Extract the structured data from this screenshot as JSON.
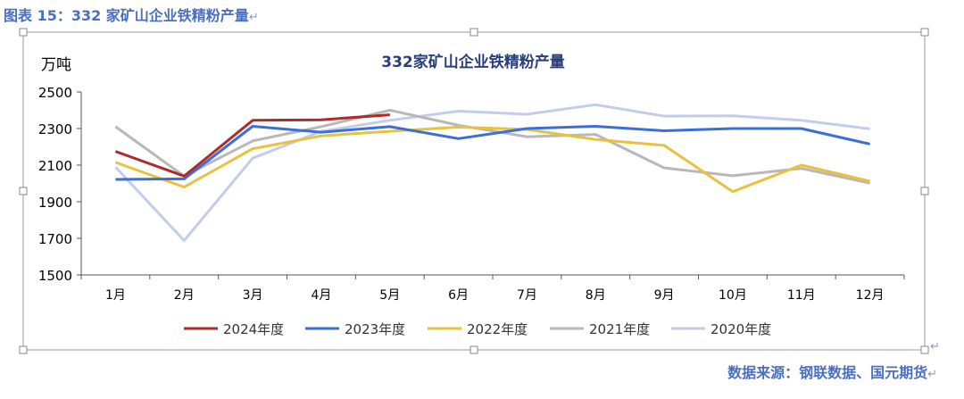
{
  "caption": "图表 15：332 家矿山企业铁精粉产量",
  "source": "数据来源：钢联数据、国元期货",
  "return_mark": "↵",
  "chart_data": {
    "type": "line",
    "title": "332家矿山企业铁精粉产量",
    "ylabel": "万吨",
    "xlabel": "",
    "categories": [
      "1月",
      "2月",
      "3月",
      "4月",
      "5月",
      "6月",
      "7月",
      "8月",
      "9月",
      "10月",
      "11月",
      "12月"
    ],
    "ylim": [
      1500,
      2500
    ],
    "yticks": [
      1500,
      1700,
      1900,
      2100,
      2300,
      2500
    ],
    "grid": false,
    "legend_position": "bottom",
    "series": [
      {
        "name": "2024年度",
        "color": "#b02a2a",
        "values": [
          2175,
          2040,
          2345,
          2348,
          2375,
          null,
          null,
          null,
          null,
          null,
          null,
          null
        ]
      },
      {
        "name": "2023年度",
        "color": "#3a6fd8",
        "values": [
          2022,
          2025,
          2312,
          2280,
          2310,
          2245,
          2300,
          2312,
          2288,
          2300,
          2300,
          2215
        ]
      },
      {
        "name": "2022年度",
        "color": "#e8c23e",
        "values": [
          2115,
          1980,
          2190,
          2260,
          2285,
          2308,
          2295,
          2240,
          2208,
          1955,
          2100,
          2012
        ]
      },
      {
        "name": "2021年度",
        "color": "#b8b8b8",
        "values": [
          2310,
          2040,
          2232,
          2310,
          2400,
          2318,
          2255,
          2268,
          2085,
          2042,
          2082,
          2002
        ]
      },
      {
        "name": "2020年度",
        "color": "#c3cdea",
        "values": [
          2090,
          1688,
          2138,
          2285,
          2345,
          2395,
          2378,
          2430,
          2368,
          2370,
          2345,
          2298
        ]
      }
    ]
  }
}
